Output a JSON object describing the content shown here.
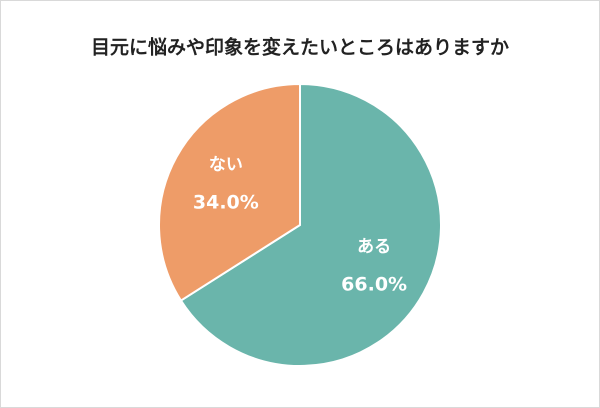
{
  "chart_data": {
    "type": "pie",
    "title": "目元に悩みや印象を変えたいところはありますか",
    "categories": [
      "ある",
      "ない"
    ],
    "values": [
      66,
      34
    ],
    "value_labels": [
      "66.0%",
      "34.0%"
    ],
    "colors": [
      "#6ab5ab",
      "#ee9c68"
    ]
  }
}
